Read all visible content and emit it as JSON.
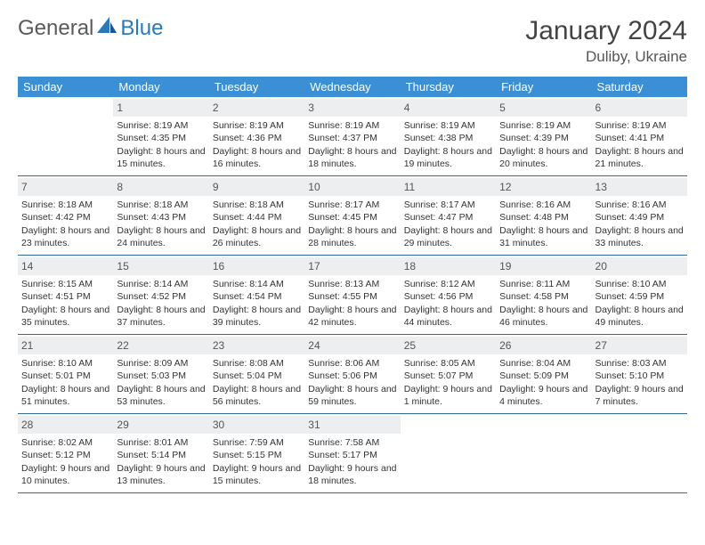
{
  "brand": {
    "part1": "General",
    "part2": "Blue"
  },
  "title": "January 2024",
  "location": "Duliby, Ukraine",
  "colors": {
    "header_bg": "#3b8fd4",
    "header_text": "#ffffff",
    "daynum_bg": "#eceef0",
    "week_border": "#2f6a9e",
    "logo_grey": "#5a5a5a",
    "logo_blue": "#2a7ab8"
  },
  "dow": [
    "Sunday",
    "Monday",
    "Tuesday",
    "Wednesday",
    "Thursday",
    "Friday",
    "Saturday"
  ],
  "weeks": [
    [
      {
        "n": "",
        "sr": "",
        "ss": "",
        "dl": ""
      },
      {
        "n": "1",
        "sr": "Sunrise: 8:19 AM",
        "ss": "Sunset: 4:35 PM",
        "dl": "Daylight: 8 hours and 15 minutes."
      },
      {
        "n": "2",
        "sr": "Sunrise: 8:19 AM",
        "ss": "Sunset: 4:36 PM",
        "dl": "Daylight: 8 hours and 16 minutes."
      },
      {
        "n": "3",
        "sr": "Sunrise: 8:19 AM",
        "ss": "Sunset: 4:37 PM",
        "dl": "Daylight: 8 hours and 18 minutes."
      },
      {
        "n": "4",
        "sr": "Sunrise: 8:19 AM",
        "ss": "Sunset: 4:38 PM",
        "dl": "Daylight: 8 hours and 19 minutes."
      },
      {
        "n": "5",
        "sr": "Sunrise: 8:19 AM",
        "ss": "Sunset: 4:39 PM",
        "dl": "Daylight: 8 hours and 20 minutes."
      },
      {
        "n": "6",
        "sr": "Sunrise: 8:19 AM",
        "ss": "Sunset: 4:41 PM",
        "dl": "Daylight: 8 hours and 21 minutes."
      }
    ],
    [
      {
        "n": "7",
        "sr": "Sunrise: 8:18 AM",
        "ss": "Sunset: 4:42 PM",
        "dl": "Daylight: 8 hours and 23 minutes."
      },
      {
        "n": "8",
        "sr": "Sunrise: 8:18 AM",
        "ss": "Sunset: 4:43 PM",
        "dl": "Daylight: 8 hours and 24 minutes."
      },
      {
        "n": "9",
        "sr": "Sunrise: 8:18 AM",
        "ss": "Sunset: 4:44 PM",
        "dl": "Daylight: 8 hours and 26 minutes."
      },
      {
        "n": "10",
        "sr": "Sunrise: 8:17 AM",
        "ss": "Sunset: 4:45 PM",
        "dl": "Daylight: 8 hours and 28 minutes."
      },
      {
        "n": "11",
        "sr": "Sunrise: 8:17 AM",
        "ss": "Sunset: 4:47 PM",
        "dl": "Daylight: 8 hours and 29 minutes."
      },
      {
        "n": "12",
        "sr": "Sunrise: 8:16 AM",
        "ss": "Sunset: 4:48 PM",
        "dl": "Daylight: 8 hours and 31 minutes."
      },
      {
        "n": "13",
        "sr": "Sunrise: 8:16 AM",
        "ss": "Sunset: 4:49 PM",
        "dl": "Daylight: 8 hours and 33 minutes."
      }
    ],
    [
      {
        "n": "14",
        "sr": "Sunrise: 8:15 AM",
        "ss": "Sunset: 4:51 PM",
        "dl": "Daylight: 8 hours and 35 minutes."
      },
      {
        "n": "15",
        "sr": "Sunrise: 8:14 AM",
        "ss": "Sunset: 4:52 PM",
        "dl": "Daylight: 8 hours and 37 minutes."
      },
      {
        "n": "16",
        "sr": "Sunrise: 8:14 AM",
        "ss": "Sunset: 4:54 PM",
        "dl": "Daylight: 8 hours and 39 minutes."
      },
      {
        "n": "17",
        "sr": "Sunrise: 8:13 AM",
        "ss": "Sunset: 4:55 PM",
        "dl": "Daylight: 8 hours and 42 minutes."
      },
      {
        "n": "18",
        "sr": "Sunrise: 8:12 AM",
        "ss": "Sunset: 4:56 PM",
        "dl": "Daylight: 8 hours and 44 minutes."
      },
      {
        "n": "19",
        "sr": "Sunrise: 8:11 AM",
        "ss": "Sunset: 4:58 PM",
        "dl": "Daylight: 8 hours and 46 minutes."
      },
      {
        "n": "20",
        "sr": "Sunrise: 8:10 AM",
        "ss": "Sunset: 4:59 PM",
        "dl": "Daylight: 8 hours and 49 minutes."
      }
    ],
    [
      {
        "n": "21",
        "sr": "Sunrise: 8:10 AM",
        "ss": "Sunset: 5:01 PM",
        "dl": "Daylight: 8 hours and 51 minutes."
      },
      {
        "n": "22",
        "sr": "Sunrise: 8:09 AM",
        "ss": "Sunset: 5:03 PM",
        "dl": "Daylight: 8 hours and 53 minutes."
      },
      {
        "n": "23",
        "sr": "Sunrise: 8:08 AM",
        "ss": "Sunset: 5:04 PM",
        "dl": "Daylight: 8 hours and 56 minutes."
      },
      {
        "n": "24",
        "sr": "Sunrise: 8:06 AM",
        "ss": "Sunset: 5:06 PM",
        "dl": "Daylight: 8 hours and 59 minutes."
      },
      {
        "n": "25",
        "sr": "Sunrise: 8:05 AM",
        "ss": "Sunset: 5:07 PM",
        "dl": "Daylight: 9 hours and 1 minute."
      },
      {
        "n": "26",
        "sr": "Sunrise: 8:04 AM",
        "ss": "Sunset: 5:09 PM",
        "dl": "Daylight: 9 hours and 4 minutes."
      },
      {
        "n": "27",
        "sr": "Sunrise: 8:03 AM",
        "ss": "Sunset: 5:10 PM",
        "dl": "Daylight: 9 hours and 7 minutes."
      }
    ],
    [
      {
        "n": "28",
        "sr": "Sunrise: 8:02 AM",
        "ss": "Sunset: 5:12 PM",
        "dl": "Daylight: 9 hours and 10 minutes."
      },
      {
        "n": "29",
        "sr": "Sunrise: 8:01 AM",
        "ss": "Sunset: 5:14 PM",
        "dl": "Daylight: 9 hours and 13 minutes."
      },
      {
        "n": "30",
        "sr": "Sunrise: 7:59 AM",
        "ss": "Sunset: 5:15 PM",
        "dl": "Daylight: 9 hours and 15 minutes."
      },
      {
        "n": "31",
        "sr": "Sunrise: 7:58 AM",
        "ss": "Sunset: 5:17 PM",
        "dl": "Daylight: 9 hours and 18 minutes."
      },
      {
        "n": "",
        "sr": "",
        "ss": "",
        "dl": ""
      },
      {
        "n": "",
        "sr": "",
        "ss": "",
        "dl": ""
      },
      {
        "n": "",
        "sr": "",
        "ss": "",
        "dl": ""
      }
    ]
  ]
}
